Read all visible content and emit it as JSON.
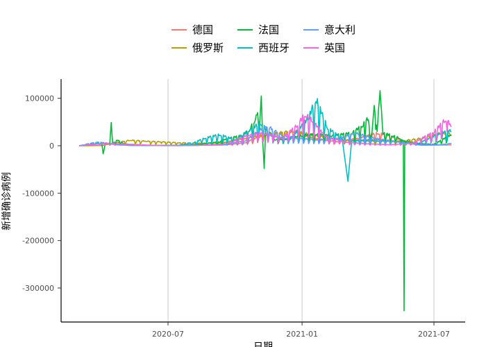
{
  "chart_data": {
    "type": "line",
    "xlabel": "日期",
    "ylabel": "新增确诊病例",
    "x_ticks": [
      "2020-07",
      "2021-01",
      "2021-07"
    ],
    "y_ticks": [
      100000,
      0,
      -100000,
      -200000,
      -300000
    ],
    "y_tick_labels": [
      "100000",
      "0",
      "-100000",
      "-200000",
      "-300000"
    ],
    "x_range": [
      "2020-03-01",
      "2021-07-25"
    ],
    "ylim": [
      -370000,
      140000
    ],
    "grid": "vertical major lines only",
    "legend_position": "top",
    "series": [
      {
        "name": "德国",
        "color": "#F8766D",
        "points": [
          [
            "2020-03-01",
            0
          ],
          [
            "2020-03-20",
            3500
          ],
          [
            "2020-04-05",
            5500
          ],
          [
            "2020-04-20",
            2000
          ],
          [
            "2020-05-15",
            800
          ],
          [
            "2020-07-01",
            400
          ],
          [
            "2020-08-15",
            1200
          ],
          [
            "2020-09-20",
            2000
          ],
          [
            "2020-10-15",
            6000
          ],
          [
            "2020-11-01",
            17000
          ],
          [
            "2020-11-20",
            22000
          ],
          [
            "2020-12-10",
            25000
          ],
          [
            "2020-12-23",
            30000
          ],
          [
            "2021-01-05",
            20000
          ],
          [
            "2021-01-25",
            12000
          ],
          [
            "2021-02-20",
            8000
          ],
          [
            "2021-03-20",
            15000
          ],
          [
            "2021-04-15",
            25000
          ],
          [
            "2021-05-05",
            18000
          ],
          [
            "2021-05-25",
            6000
          ],
          [
            "2021-06-15",
            1000
          ],
          [
            "2021-07-15",
            1500
          ],
          [
            "2021-07-25",
            2000
          ]
        ]
      },
      {
        "name": "俄罗斯",
        "color": "#B79F00",
        "points": [
          [
            "2020-03-01",
            0
          ],
          [
            "2020-04-01",
            500
          ],
          [
            "2020-04-20",
            6000
          ],
          [
            "2020-05-10",
            11000
          ],
          [
            "2020-06-01",
            9000
          ],
          [
            "2020-06-20",
            8000
          ],
          [
            "2020-07-15",
            6000
          ],
          [
            "2020-08-15",
            5000
          ],
          [
            "2020-09-15",
            6000
          ],
          [
            "2020-10-15",
            15000
          ],
          [
            "2020-11-15",
            23000
          ],
          [
            "2020-12-20",
            29000
          ],
          [
            "2021-01-10",
            23000
          ],
          [
            "2021-02-10",
            15000
          ],
          [
            "2021-03-10",
            10000
          ],
          [
            "2021-04-15",
            9000
          ],
          [
            "2021-05-15",
            9000
          ],
          [
            "2021-06-15",
            15000
          ],
          [
            "2021-07-10",
            25000
          ],
          [
            "2021-07-25",
            23000
          ]
        ]
      },
      {
        "name": "法国",
        "color": "#00BA38",
        "points": [
          [
            "2020-03-01",
            0
          ],
          [
            "2020-03-20",
            3000
          ],
          [
            "2020-04-01",
            6000
          ],
          [
            "2020-04-03",
            -17000
          ],
          [
            "2020-04-06",
            5000
          ],
          [
            "2020-04-12",
            3000
          ],
          [
            "2020-04-14",
            49000
          ],
          [
            "2020-04-16",
            4000
          ],
          [
            "2020-04-22",
            12000
          ],
          [
            "2020-05-05",
            1000
          ],
          [
            "2020-06-01",
            500
          ],
          [
            "2020-07-15",
            700
          ],
          [
            "2020-08-15",
            3000
          ],
          [
            "2020-09-10",
            8000
          ],
          [
            "2020-09-20",
            14000
          ],
          [
            "2020-10-10",
            20000
          ],
          [
            "2020-10-20",
            30000
          ],
          [
            "2020-10-28",
            50000
          ],
          [
            "2020-11-01",
            70000
          ],
          [
            "2020-11-03",
            25000
          ],
          [
            "2020-11-06",
            105000
          ],
          [
            "2020-11-08",
            10000
          ],
          [
            "2020-11-10",
            -48000
          ],
          [
            "2020-11-12",
            35000
          ],
          [
            "2020-11-25",
            12000
          ],
          [
            "2020-12-10",
            13000
          ],
          [
            "2021-01-01",
            20000
          ],
          [
            "2021-01-20",
            23000
          ],
          [
            "2021-02-10",
            20000
          ],
          [
            "2021-03-10",
            25000
          ],
          [
            "2021-03-25",
            40000
          ],
          [
            "2021-04-02",
            55000
          ],
          [
            "2021-04-06",
            10000
          ],
          [
            "2021-04-10",
            85000
          ],
          [
            "2021-04-14",
            30000
          ],
          [
            "2021-04-18",
            116000
          ],
          [
            "2021-04-22",
            25000
          ],
          [
            "2021-05-05",
            20000
          ],
          [
            "2021-05-15",
            15000
          ],
          [
            "2021-05-20",
            10000
          ],
          [
            "2021-05-21",
            -348000
          ],
          [
            "2021-05-22",
            10000
          ],
          [
            "2021-06-10",
            4000
          ],
          [
            "2021-07-01",
            3000
          ],
          [
            "2021-07-25",
            22000
          ]
        ]
      },
      {
        "name": "西班牙",
        "color": "#00BFC4",
        "points": [
          [
            "2020-03-01",
            0
          ],
          [
            "2020-03-25",
            7000
          ],
          [
            "2020-04-10",
            5000
          ],
          [
            "2020-04-25",
            2000
          ],
          [
            "2020-05-20",
            500
          ],
          [
            "2020-07-15",
            1000
          ],
          [
            "2020-08-05",
            6000
          ],
          [
            "2020-08-20",
            15000
          ],
          [
            "2020-09-10",
            22000
          ],
          [
            "2020-10-01",
            12000
          ],
          [
            "2020-10-20",
            30000
          ],
          [
            "2020-11-05",
            45000
          ],
          [
            "2020-11-20",
            20000
          ],
          [
            "2020-12-15",
            12000
          ],
          [
            "2021-01-10",
            55000
          ],
          [
            "2021-01-20",
            93000
          ],
          [
            "2021-02-05",
            35000
          ],
          [
            "2021-02-25",
            15000
          ],
          [
            "2021-03-05",
            -75000
          ],
          [
            "2021-03-10",
            10000
          ],
          [
            "2021-04-10",
            12000
          ],
          [
            "2021-05-10",
            8000
          ],
          [
            "2021-06-10",
            5000
          ],
          [
            "2021-07-10",
            25000
          ],
          [
            "2021-07-25",
            30000
          ]
        ]
      },
      {
        "name": "意大利",
        "color": "#619CFF",
        "points": [
          [
            "2020-03-01",
            0
          ],
          [
            "2020-03-20",
            6000
          ],
          [
            "2020-04-05",
            4500
          ],
          [
            "2020-04-25",
            2500
          ],
          [
            "2020-05-20",
            600
          ],
          [
            "2020-07-15",
            200
          ],
          [
            "2020-09-15",
            1800
          ],
          [
            "2020-10-15",
            10000
          ],
          [
            "2020-11-13",
            40000
          ],
          [
            "2020-12-05",
            20000
          ],
          [
            "2020-12-25",
            15000
          ],
          [
            "2021-01-20",
            12000
          ],
          [
            "2021-02-20",
            14000
          ],
          [
            "2021-03-15",
            25000
          ],
          [
            "2021-04-10",
            15000
          ],
          [
            "2021-05-10",
            8000
          ],
          [
            "2021-06-10",
            1800
          ],
          [
            "2021-07-10",
            2000
          ],
          [
            "2021-07-25",
            5000
          ]
        ]
      },
      {
        "name": "英国",
        "color": "#F564E3",
        "points": [
          [
            "2020-03-01",
            0
          ],
          [
            "2020-04-10",
            5000
          ],
          [
            "2020-05-10",
            3000
          ],
          [
            "2020-06-10",
            1000
          ],
          [
            "2020-07-15",
            600
          ],
          [
            "2020-08-15",
            1000
          ],
          [
            "2020-09-20",
            4000
          ],
          [
            "2020-10-20",
            22000
          ],
          [
            "2020-11-10",
            25000
          ],
          [
            "2020-12-05",
            15000
          ],
          [
            "2020-12-25",
            40000
          ],
          [
            "2021-01-05",
            62000
          ],
          [
            "2021-01-15",
            50000
          ],
          [
            "2021-02-01",
            20000
          ],
          [
            "2021-03-01",
            7000
          ],
          [
            "2021-04-01",
            4000
          ],
          [
            "2021-05-01",
            2000
          ],
          [
            "2021-06-01",
            5000
          ],
          [
            "2021-07-01",
            27000
          ],
          [
            "2021-07-17",
            52000
          ],
          [
            "2021-07-25",
            40000
          ]
        ]
      }
    ]
  }
}
